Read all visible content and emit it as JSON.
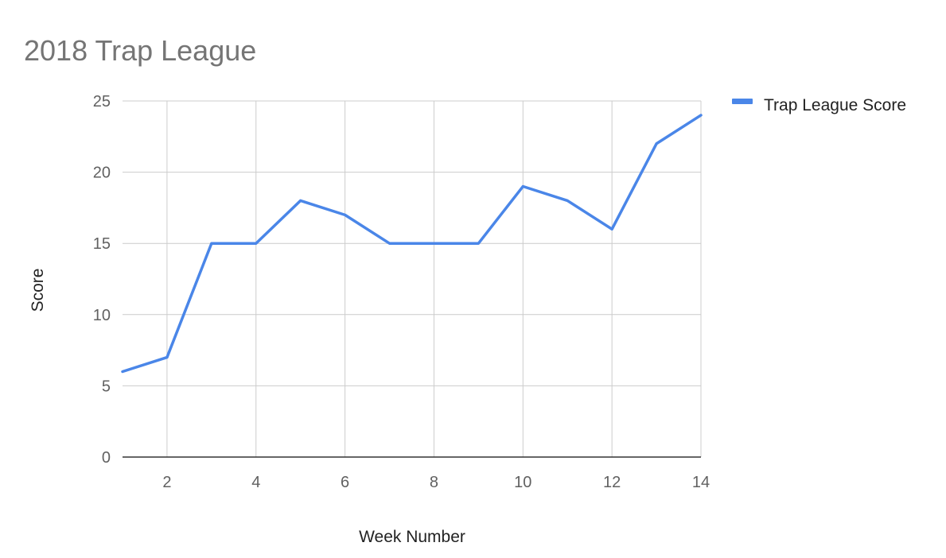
{
  "chart_data": {
    "type": "line",
    "title": "2018 Trap League",
    "xlabel": "Week Number",
    "ylabel": "Score",
    "x": [
      1,
      2,
      3,
      4,
      5,
      6,
      7,
      8,
      9,
      10,
      11,
      12,
      13,
      14
    ],
    "series": [
      {
        "name": "Trap League Score",
        "color": "#4a86e8",
        "values": [
          6,
          7,
          15,
          15,
          18,
          17,
          15,
          15,
          15,
          19,
          18,
          16,
          22,
          24
        ]
      }
    ],
    "xlim": [
      1,
      14
    ],
    "ylim": [
      0,
      25
    ],
    "x_ticks": [
      2,
      4,
      6,
      8,
      10,
      12,
      14
    ],
    "y_ticks": [
      0,
      5,
      10,
      15,
      20,
      25
    ],
    "grid": true,
    "legend_position": "top-right"
  }
}
